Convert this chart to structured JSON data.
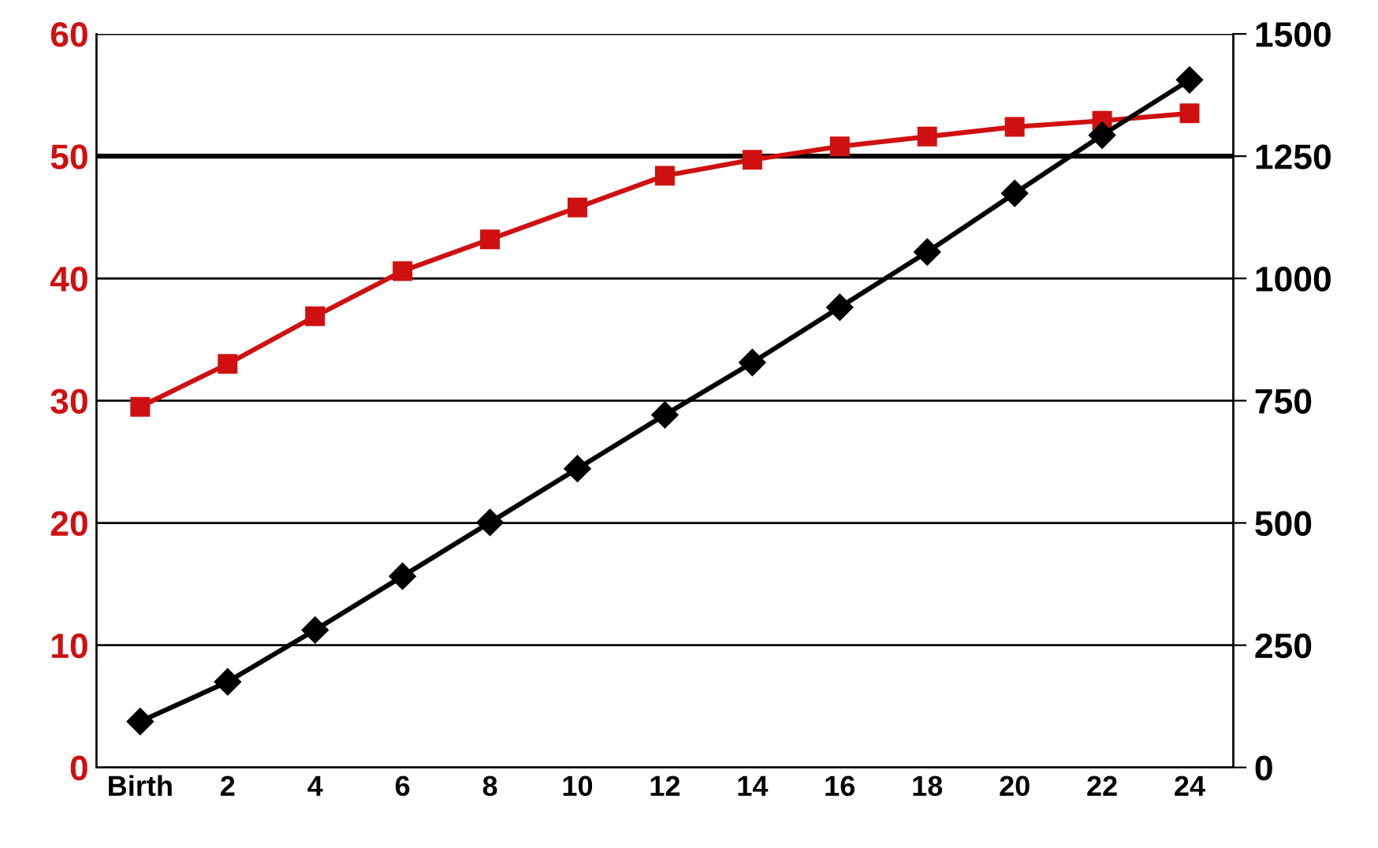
{
  "chart_data": {
    "type": "line",
    "categories": [
      "Birth",
      "2",
      "4",
      "6",
      "8",
      "10",
      "12",
      "14",
      "16",
      "18",
      "20",
      "22",
      "24"
    ],
    "series": [
      {
        "color": "#d01010",
        "marker": "square",
        "values": [
          29.5,
          33.0,
          36.9,
          40.6,
          43.2,
          45.8,
          48.4,
          49.7,
          50.8,
          51.6,
          52.4,
          52.9,
          53.5
        ]
      },
      {
        "color": "#000000",
        "marker": "diamond",
        "axis": "y2",
        "values": [
          94,
          175,
          281,
          391,
          501,
          611,
          721,
          828,
          941,
          1054,
          1174,
          1293,
          1406
        ]
      }
    ],
    "ylim": [
      0,
      60
    ],
    "yticks": [
      0,
      10,
      20,
      30,
      40,
      50,
      60
    ],
    "y2lim": [
      0,
      1500
    ],
    "y2ticks": [
      0,
      250,
      500,
      750,
      1000,
      1250,
      1500
    ],
    "ref_lines": [
      {
        "axis": "y",
        "value": 50,
        "color": "#000000"
      }
    ],
    "grid": "y",
    "line_style": "solid"
  }
}
